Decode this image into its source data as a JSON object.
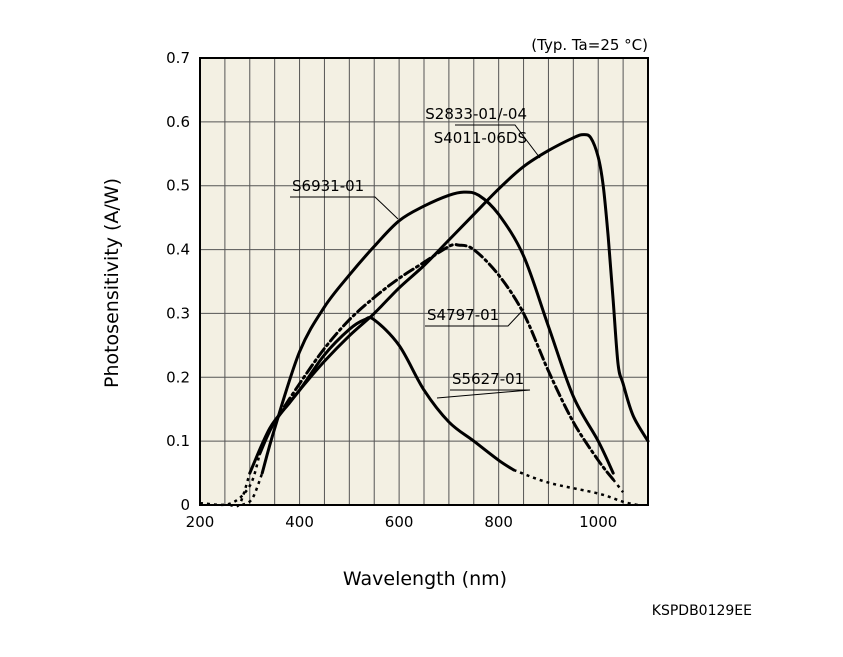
{
  "chart_data": {
    "type": "line",
    "condition": "(Typ. Ta=25 °C)",
    "xlabel": "Wavelength (nm)",
    "ylabel": "Photosensitivity (A/W)",
    "xlim": [
      200,
      1100
    ],
    "ylim": [
      0,
      0.7
    ],
    "x_ticks": [
      200,
      400,
      600,
      800,
      1000
    ],
    "x_tick_labels": [
      "200",
      "400",
      "600",
      "800",
      "1000"
    ],
    "y_ticks": [
      0,
      0.1,
      0.2,
      0.3,
      0.4,
      0.5,
      0.6,
      0.7
    ],
    "y_tick_labels": [
      "0",
      "0.1",
      "0.2",
      "0.3",
      "0.4",
      "0.5",
      "0.6",
      "0.7"
    ],
    "grid": true,
    "legend": "inline labels with leader lines",
    "document_code": "KSPDB0129EE",
    "colors": {
      "background": "#f3f0e3",
      "line": "#000000",
      "grid": "#555555"
    },
    "series": [
      {
        "name": "S2833-01/-04",
        "name_line2": "S4011-06DS",
        "style": "solid",
        "points": [
          [
            300,
            0.05
          ],
          [
            340,
            0.12
          ],
          [
            380,
            0.16
          ],
          [
            400,
            0.18
          ],
          [
            450,
            0.225
          ],
          [
            500,
            0.265
          ],
          [
            550,
            0.3
          ],
          [
            600,
            0.34
          ],
          [
            650,
            0.375
          ],
          [
            700,
            0.415
          ],
          [
            750,
            0.455
          ],
          [
            800,
            0.495
          ],
          [
            850,
            0.53
          ],
          [
            900,
            0.555
          ],
          [
            950,
            0.575
          ],
          [
            970,
            0.58
          ],
          [
            985,
            0.575
          ],
          [
            1000,
            0.545
          ],
          [
            1010,
            0.5
          ],
          [
            1020,
            0.42
          ],
          [
            1030,
            0.32
          ],
          [
            1040,
            0.22
          ],
          [
            1050,
            0.19
          ],
          [
            1070,
            0.14
          ],
          [
            1100,
            0.1
          ]
        ],
        "dotted_points": [
          [
            260,
            0
          ],
          [
            280,
            0.002
          ],
          [
            300,
            0.05
          ]
        ]
      },
      {
        "name": "S6931-01",
        "style": "solid",
        "points": [
          [
            325,
            0.05
          ],
          [
            350,
            0.12
          ],
          [
            400,
            0.24
          ],
          [
            450,
            0.31
          ],
          [
            500,
            0.36
          ],
          [
            550,
            0.405
          ],
          [
            600,
            0.445
          ],
          [
            650,
            0.468
          ],
          [
            700,
            0.485
          ],
          [
            730,
            0.49
          ],
          [
            760,
            0.485
          ],
          [
            800,
            0.455
          ],
          [
            850,
            0.39
          ],
          [
            900,
            0.28
          ],
          [
            950,
            0.17
          ],
          [
            1000,
            0.1
          ],
          [
            1030,
            0.05
          ]
        ],
        "dotted_points": [
          [
            285,
            0
          ],
          [
            305,
            0.01
          ],
          [
            325,
            0.05
          ]
        ]
      },
      {
        "name": "S4797-01",
        "style": "dash-dot",
        "points": [
          [
            330,
            0.1
          ],
          [
            350,
            0.13
          ],
          [
            400,
            0.19
          ],
          [
            450,
            0.245
          ],
          [
            500,
            0.29
          ],
          [
            550,
            0.325
          ],
          [
            600,
            0.355
          ],
          [
            650,
            0.38
          ],
          [
            700,
            0.405
          ],
          [
            720,
            0.407
          ],
          [
            750,
            0.4
          ],
          [
            800,
            0.36
          ],
          [
            850,
            0.3
          ],
          [
            900,
            0.21
          ],
          [
            950,
            0.13
          ],
          [
            1000,
            0.07
          ],
          [
            1030,
            0.04
          ]
        ],
        "dotted_points": [
          [
            1030,
            0.04
          ],
          [
            1050,
            0.02
          ]
        ]
      },
      {
        "name": "S5627-01",
        "style": "solid",
        "points": [
          [
            320,
            0.08
          ],
          [
            350,
            0.13
          ],
          [
            400,
            0.18
          ],
          [
            450,
            0.235
          ],
          [
            500,
            0.275
          ],
          [
            530,
            0.29
          ],
          [
            550,
            0.29
          ],
          [
            600,
            0.25
          ],
          [
            650,
            0.18
          ],
          [
            700,
            0.13
          ],
          [
            750,
            0.1
          ],
          [
            800,
            0.07
          ],
          [
            830,
            0.055
          ]
        ],
        "dotted_points": [
          [
            830,
            0.055
          ],
          [
            900,
            0.035
          ],
          [
            1000,
            0.018
          ],
          [
            1050,
            0.005
          ],
          [
            1080,
            0
          ]
        ],
        "dotted_points_left": [
          [
            200,
            0.003
          ],
          [
            260,
            0.002
          ],
          [
            300,
            0.03
          ],
          [
            320,
            0.08
          ]
        ]
      }
    ]
  }
}
